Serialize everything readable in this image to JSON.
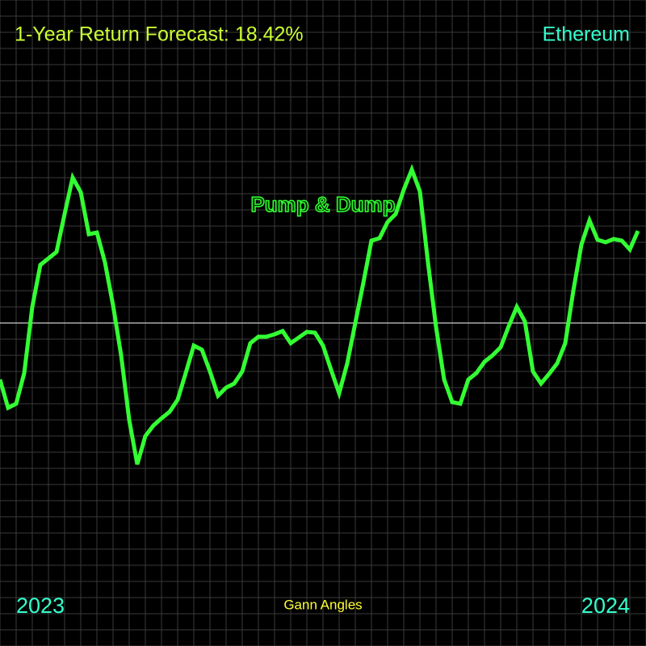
{
  "chart_data": {
    "type": "line",
    "title": "1-Year Return Forecast: 18.42%",
    "subtitle": "Ethereum",
    "annotations": {
      "start": "2023",
      "end": "2024",
      "footer": "Gann Angles",
      "event": "Pump & Dump"
    },
    "x": [
      0,
      10,
      20,
      30,
      40,
      50,
      60,
      70,
      80,
      90,
      100,
      110,
      120,
      130,
      140,
      150,
      160,
      170,
      180,
      190,
      200,
      210,
      220,
      230,
      240,
      250,
      260,
      270,
      280,
      290,
      300,
      310,
      320,
      330,
      340,
      350,
      360,
      370,
      380,
      390,
      400,
      410,
      420,
      430,
      440,
      450,
      460,
      470,
      480,
      490,
      500,
      510,
      520,
      530,
      540,
      550,
      560,
      570,
      580,
      590,
      600,
      610,
      620,
      630,
      640,
      650,
      660,
      670,
      680,
      690,
      700,
      710,
      720,
      730,
      740,
      750,
      760,
      770,
      780,
      790
    ],
    "values": [
      -70,
      -105,
      -100,
      -62,
      20,
      72,
      80,
      88,
      135,
      180,
      162,
      110,
      112,
      75,
      22,
      -40,
      -120,
      -175,
      -140,
      -127,
      -118,
      -110,
      -95,
      -62,
      -28,
      -33,
      -60,
      -90,
      -80,
      -75,
      -60,
      -25,
      -17,
      -17,
      -14,
      -10,
      -25,
      -18,
      -11,
      -12,
      -28,
      -58,
      -87,
      -50,
      0,
      50,
      102,
      105,
      125,
      135,
      165,
      190,
      163,
      75,
      -5,
      -70,
      -98,
      -100,
      -70,
      -62,
      -48,
      -40,
      -30,
      -4,
      20,
      2,
      -60,
      -75,
      -63,
      -50,
      -25,
      40,
      97,
      127,
      103,
      100,
      104,
      102,
      91,
      114
    ],
    "color": "#33ff33",
    "xlim": [
      0,
      800
    ],
    "ylim": [
      -400,
      400
    ],
    "baseline": 0,
    "grid": true
  }
}
